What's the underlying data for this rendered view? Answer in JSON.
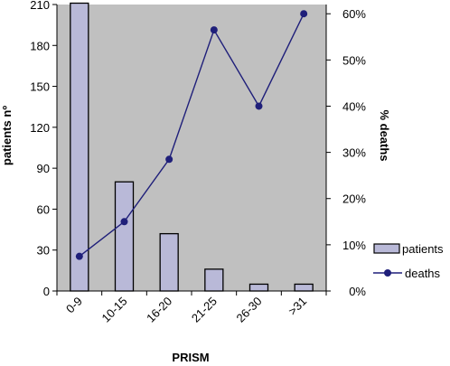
{
  "chart_data": {
    "type": "bar+line",
    "categories": [
      "0-9",
      "10-15",
      "16-20",
      "21-25",
      "26-30",
      ">31"
    ],
    "xlabel": "PRISM",
    "ylabel_left": "patients nº",
    "ylabel_right": "% deaths",
    "y_left": {
      "min": 0,
      "max": 210,
      "ticks": [
        0,
        30,
        60,
        90,
        120,
        150,
        180,
        210
      ]
    },
    "y_right": {
      "min": 0,
      "max": 62,
      "ticks": [
        0,
        10,
        20,
        30,
        40,
        50,
        60
      ],
      "tick_labels": [
        "0%",
        "10%",
        "20%",
        "30%",
        "40%",
        "50%",
        "60%"
      ]
    },
    "series": [
      {
        "name": "patients",
        "kind": "bar",
        "axis": "left",
        "values": [
          211,
          80,
          42,
          16,
          5,
          5
        ]
      },
      {
        "name": "deaths",
        "kind": "line",
        "axis": "right",
        "values": [
          7.5,
          15,
          28.5,
          56.5,
          40,
          60
        ]
      }
    ],
    "grid": false,
    "legend_position": "right",
    "colors": {
      "plot_bg": "#c0c0c0",
      "bar_fill": "#b9b9d8",
      "bar_edge": "#000000",
      "line": "#1f1f7a"
    }
  }
}
